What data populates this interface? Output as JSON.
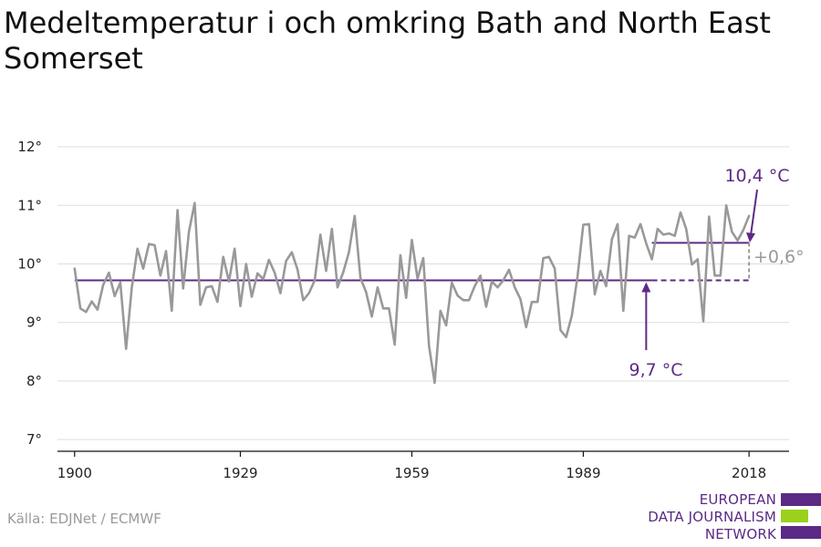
{
  "title": "Medeltemperatur i och omkring Bath and North East Somerset",
  "source": "Källa: EDJNet / ECMWF",
  "logo": {
    "lines": [
      "EUROPEAN",
      "DATA JOURNALISM",
      "NETWORK"
    ],
    "colors": [
      "#5a2a86",
      "#9bd11d",
      "#5a2a86"
    ]
  },
  "colors": {
    "temperature_line": "#999999",
    "reference": "#5e2a84",
    "delta": "#999999",
    "grid": "#dddddd",
    "axis": "#111111"
  },
  "chart_data": {
    "type": "line",
    "title": "Medeltemperatur i och omkring Bath and North East Somerset",
    "xlabel": "",
    "ylabel": "",
    "x_ticks": [
      1900,
      1929,
      1959,
      1989,
      2018
    ],
    "x_tick_labels": [
      "1900",
      "1929",
      "1959",
      "1989",
      "2018"
    ],
    "y_ticks": [
      7,
      8,
      9,
      10,
      11,
      12
    ],
    "y_tick_labels": [
      "7°",
      "8°",
      "9°",
      "10°",
      "11°",
      "12°"
    ],
    "xlim": [
      1897,
      2025
    ],
    "ylim": [
      6.8,
      12.25
    ],
    "grid": true,
    "series": [
      {
        "x": [
          1900,
          1901,
          1902,
          1903,
          1904,
          1905,
          1906,
          1907,
          1908,
          1909,
          1910,
          1911,
          1912,
          1913,
          1914,
          1915,
          1916,
          1917,
          1918,
          1919,
          1920,
          1921,
          1922,
          1923,
          1924,
          1925,
          1926,
          1927,
          1928,
          1929,
          1930,
          1931,
          1932,
          1933,
          1934,
          1935,
          1936,
          1937,
          1938,
          1939,
          1940,
          1941,
          1942,
          1943,
          1944,
          1945,
          1946,
          1947,
          1948,
          1949,
          1950,
          1951,
          1952,
          1953,
          1954,
          1955,
          1956,
          1957,
          1958,
          1959,
          1960,
          1961,
          1962,
          1963,
          1964,
          1965,
          1966,
          1967,
          1968,
          1969,
          1970,
          1971,
          1972,
          1973,
          1974,
          1975,
          1976,
          1977,
          1978,
          1979,
          1980,
          1981,
          1982,
          1983,
          1984,
          1985,
          1986,
          1987,
          1988,
          1989,
          1990,
          1991,
          1992,
          1993,
          1994,
          1995,
          1996,
          1997,
          1998,
          1999,
          2000,
          2001,
          2002,
          2003,
          2004,
          2005,
          2006,
          2007,
          2008,
          2009,
          2010,
          2011,
          2012,
          2013,
          2014,
          2015,
          2016,
          2017,
          2018
        ],
        "values": [
          9.92,
          9.24,
          9.18,
          9.36,
          9.22,
          9.64,
          9.85,
          9.45,
          9.68,
          8.55,
          9.6,
          10.26,
          9.92,
          10.34,
          10.32,
          9.8,
          10.22,
          9.2,
          10.92,
          9.58,
          10.55,
          11.04,
          9.3,
          9.6,
          9.62,
          9.35,
          10.12,
          9.7,
          10.26,
          9.28,
          10.0,
          9.44,
          9.84,
          9.74,
          10.07,
          9.85,
          9.5,
          10.05,
          10.2,
          9.9,
          9.38,
          9.5,
          9.72,
          10.5,
          9.88,
          10.6,
          9.6,
          9.86,
          10.2,
          10.82,
          9.76,
          9.52,
          9.1,
          9.6,
          9.24,
          9.24,
          8.62,
          10.15,
          9.42,
          10.41,
          9.75,
          10.1,
          8.6,
          7.97,
          9.2,
          8.95,
          9.68,
          9.46,
          9.38,
          9.38,
          9.62,
          9.8,
          9.27,
          9.7,
          9.6,
          9.72,
          9.9,
          9.6,
          9.4,
          8.92,
          9.35,
          9.35,
          10.1,
          10.12,
          9.92,
          8.87,
          8.75,
          9.12,
          9.8,
          10.67,
          10.68,
          9.48,
          9.88,
          9.62,
          10.42,
          10.68,
          9.2,
          10.48,
          10.45,
          10.68,
          10.35,
          10.08,
          10.6,
          10.5,
          10.52,
          10.48,
          10.88,
          10.6,
          9.99,
          10.08,
          9.02,
          10.81,
          9.8,
          9.8,
          11.0,
          10.55,
          10.4,
          10.58,
          10.82
        ]
      }
    ],
    "reference_line": {
      "value": 9.72,
      "x_start": 1900,
      "x_end": 2018,
      "dashed_from": 2001
    },
    "recent_line": {
      "value": 10.36,
      "x_start": 2001,
      "x_end": 2018
    },
    "annotations": [
      {
        "text": "10,4 °C",
        "x": 2018,
        "y": 10.36
      },
      {
        "text": "9,7 °C",
        "x": 2000,
        "y": 9.72
      },
      {
        "text": "+0,6°",
        "x": 2018,
        "y": 10.04
      }
    ]
  }
}
